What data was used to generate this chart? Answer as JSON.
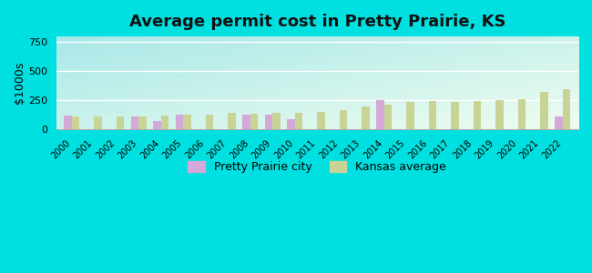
{
  "title": "Average permit cost in Pretty Prairie, KS",
  "ylabel": "$1000s",
  "years": [
    2000,
    2001,
    2002,
    2003,
    2004,
    2005,
    2006,
    2007,
    2008,
    2009,
    2010,
    2011,
    2012,
    2013,
    2014,
    2015,
    2016,
    2017,
    2018,
    2019,
    2020,
    2021,
    2022
  ],
  "city_values": [
    120,
    0,
    0,
    110,
    70,
    130,
    0,
    0,
    130,
    130,
    90,
    0,
    0,
    0,
    250,
    0,
    0,
    0,
    0,
    0,
    0,
    0,
    110
  ],
  "ks_values": [
    110,
    110,
    110,
    115,
    120,
    130,
    125,
    140,
    135,
    140,
    140,
    150,
    170,
    195,
    210,
    238,
    245,
    240,
    245,
    250,
    262,
    320,
    345
  ],
  "city_color": "#d4a8d8",
  "ks_color": "#c8d496",
  "ylim": [
    0,
    800
  ],
  "yticks": [
    0,
    250,
    500,
    750
  ],
  "bg_top_left": "#a8e8e8",
  "bg_bottom_right": "#e8f5e8",
  "outer_bg": "#00e0e0",
  "legend_city": "Pretty Prairie city",
  "legend_ks": "Kansas average",
  "bar_width": 0.35
}
